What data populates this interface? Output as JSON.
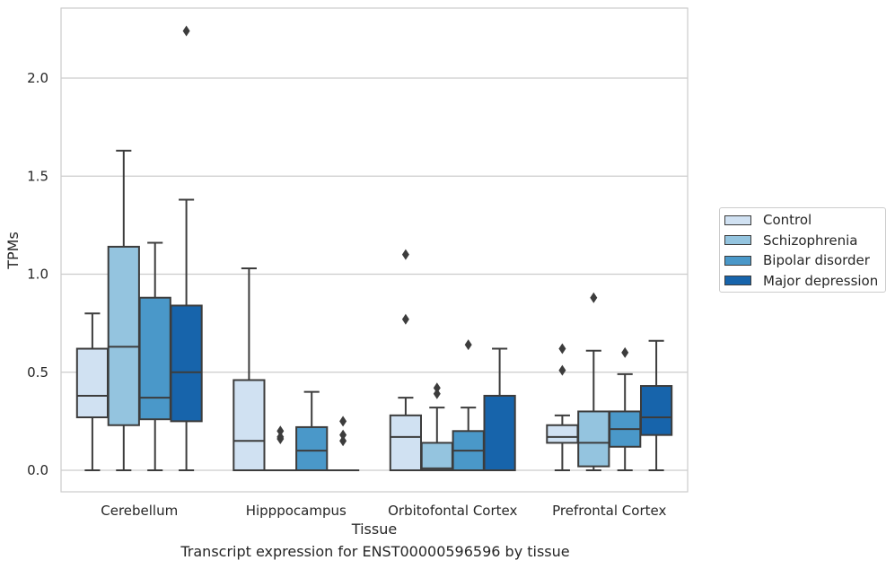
{
  "caption": "Transcript expression for ENST00000596596 by tissue",
  "chart_data": {
    "type": "boxplot",
    "xlabel": "Tissue",
    "ylabel": "TPMs",
    "ylim": [
      -0.11,
      2.37
    ],
    "yticks": [
      0.0,
      0.5,
      1.0,
      1.5,
      2.0
    ],
    "ytick_labels": [
      "0.0",
      "0.5",
      "1.0",
      "1.5",
      "2.0"
    ],
    "grid": "horizontal",
    "legend_position": "right",
    "categories": [
      "Cerebellum",
      "Hipppocampus",
      "Orbitofontal Cortex",
      "Prefrontal Cortex"
    ],
    "series": [
      {
        "name": "Control",
        "color": "#d0e1f2",
        "boxes": [
          {
            "whislo": 0.0,
            "q1": 0.27,
            "med": 0.38,
            "q3": 0.62,
            "whishi": 0.8,
            "fliers": []
          },
          {
            "whislo": 0.0,
            "q1": 0.0,
            "med": 0.15,
            "q3": 0.46,
            "whishi": 1.03,
            "fliers": []
          },
          {
            "whislo": 0.0,
            "q1": 0.0,
            "med": 0.17,
            "q3": 0.28,
            "whishi": 0.37,
            "fliers": [
              0.77,
              1.1
            ]
          },
          {
            "whislo": 0.0,
            "q1": 0.14,
            "med": 0.17,
            "q3": 0.23,
            "whishi": 0.28,
            "fliers": [
              0.51,
              0.62
            ]
          }
        ]
      },
      {
        "name": "Schizophrenia",
        "color": "#94c4df",
        "boxes": [
          {
            "whislo": 0.0,
            "q1": 0.23,
            "med": 0.63,
            "q3": 1.14,
            "whishi": 1.63,
            "fliers": []
          },
          {
            "whislo": 0.0,
            "q1": 0.0,
            "med": 0.0,
            "q3": 0.0,
            "whishi": 0.0,
            "fliers": [
              0.16,
              0.17,
              0.2
            ]
          },
          {
            "whislo": 0.0,
            "q1": 0.0,
            "med": 0.01,
            "q3": 0.14,
            "whishi": 0.32,
            "fliers": [
              0.39,
              0.42
            ]
          },
          {
            "whislo": 0.0,
            "q1": 0.02,
            "med": 0.14,
            "q3": 0.3,
            "whishi": 0.61,
            "fliers": [
              0.88
            ]
          }
        ]
      },
      {
        "name": "Bipolar disorder",
        "color": "#4a98c9",
        "boxes": [
          {
            "whislo": 0.0,
            "q1": 0.26,
            "med": 0.37,
            "q3": 0.88,
            "whishi": 1.16,
            "fliers": []
          },
          {
            "whislo": 0.0,
            "q1": 0.0,
            "med": 0.1,
            "q3": 0.22,
            "whishi": 0.4,
            "fliers": []
          },
          {
            "whislo": 0.0,
            "q1": 0.0,
            "med": 0.1,
            "q3": 0.2,
            "whishi": 0.32,
            "fliers": [
              0.64
            ]
          },
          {
            "whislo": 0.0,
            "q1": 0.12,
            "med": 0.21,
            "q3": 0.3,
            "whishi": 0.49,
            "fliers": [
              0.6
            ]
          }
        ]
      },
      {
        "name": "Major depression",
        "color": "#1764ab",
        "boxes": [
          {
            "whislo": 0.0,
            "q1": 0.25,
            "med": 0.5,
            "q3": 0.84,
            "whishi": 1.38,
            "fliers": [
              2.24
            ]
          },
          {
            "whislo": 0.0,
            "q1": 0.0,
            "med": 0.0,
            "q3": 0.0,
            "whishi": 0.0,
            "fliers": [
              0.15,
              0.18,
              0.25
            ]
          },
          {
            "whislo": 0.0,
            "q1": 0.0,
            "med": 0.0,
            "q3": 0.38,
            "whishi": 0.62,
            "fliers": []
          },
          {
            "whislo": 0.0,
            "q1": 0.18,
            "med": 0.27,
            "q3": 0.43,
            "whishi": 0.66,
            "fliers": []
          }
        ]
      }
    ]
  }
}
